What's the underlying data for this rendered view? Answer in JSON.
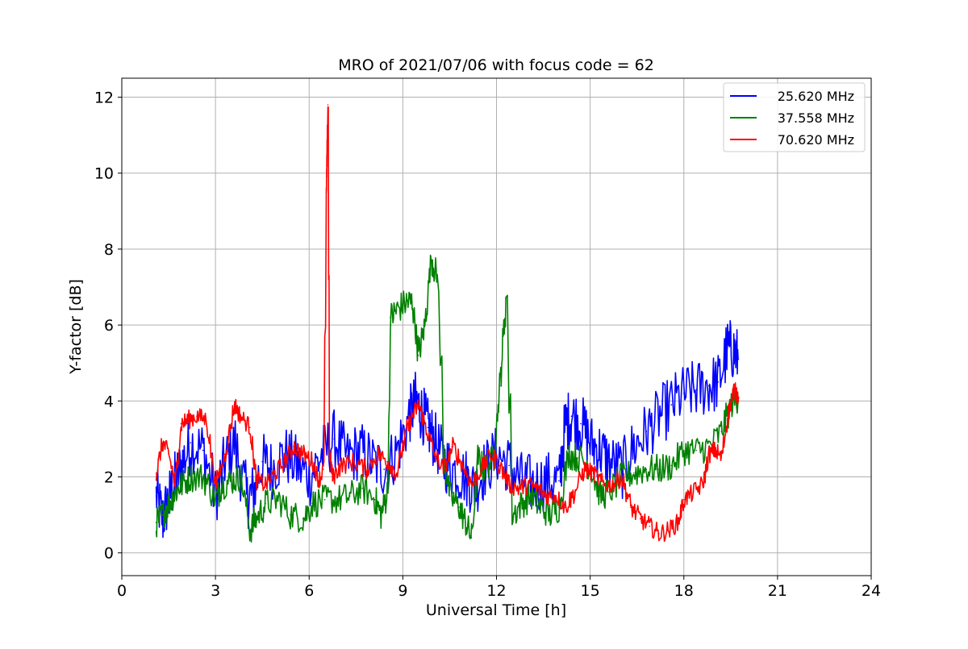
{
  "chart_data": {
    "type": "line",
    "title": "MRO of 2021/07/06 with focus code = 62",
    "xlabel": "Universal Time [h]",
    "ylabel": "Y-factor [dB]",
    "xlim": [
      0,
      24
    ],
    "ylim": [
      -0.6,
      12.5
    ],
    "xticks": [
      0,
      3,
      6,
      9,
      12,
      15,
      18,
      21,
      24
    ],
    "yticks": [
      0,
      2,
      4,
      6,
      8,
      10,
      12
    ],
    "grid": true,
    "legend_position": "top-right",
    "series": [
      {
        "name": "25.620 MHz",
        "color": "#0000ff",
        "noise": 0.8,
        "x": [
          1.1,
          1.3,
          1.5,
          1.7,
          1.9,
          2.2,
          2.6,
          3.0,
          3.3,
          3.6,
          4.0,
          4.2,
          4.5,
          4.8,
          5.2,
          5.6,
          6.0,
          6.4,
          6.8,
          7.2,
          7.6,
          8.0,
          8.4,
          8.8,
          9.2,
          9.4,
          9.6,
          9.8,
          10.0,
          10.3,
          10.6,
          11.0,
          11.3,
          11.6,
          12.0,
          12.4,
          12.8,
          13.2,
          13.6,
          14.0,
          14.2,
          14.4,
          14.7,
          15.0,
          15.3,
          15.6,
          16.0,
          16.4,
          16.8,
          17.2,
          17.6,
          18.0,
          18.4,
          18.8,
          19.1,
          19.4,
          19.6,
          19.75
        ],
        "y": [
          1.5,
          0.9,
          1.4,
          1.9,
          2.3,
          2.9,
          2.7,
          1.5,
          2.4,
          2.9,
          1.4,
          1.6,
          2.4,
          2.2,
          2.6,
          2.3,
          2.0,
          2.6,
          3.0,
          2.5,
          2.7,
          2.4,
          2.2,
          2.7,
          3.6,
          4.0,
          3.7,
          3.3,
          3.0,
          2.4,
          2.2,
          2.0,
          1.7,
          2.2,
          2.6,
          2.3,
          1.9,
          1.8,
          1.9,
          1.9,
          3.4,
          3.6,
          3.4,
          2.9,
          2.7,
          2.4,
          2.2,
          2.8,
          3.2,
          3.6,
          3.9,
          4.2,
          4.3,
          4.4,
          4.5,
          5.4,
          5.3,
          5.1
        ]
      },
      {
        "name": "37.558 MHz",
        "color": "#008000",
        "noise": 0.4,
        "x": [
          1.1,
          1.3,
          1.5,
          1.7,
          1.9,
          2.2,
          2.6,
          3.0,
          3.2,
          3.5,
          3.8,
          4.1,
          4.3,
          4.6,
          5.0,
          5.4,
          5.8,
          6.1,
          6.5,
          6.9,
          7.3,
          7.7,
          8.1,
          8.3,
          8.5,
          8.6,
          8.8,
          9.1,
          9.3,
          9.5,
          9.7,
          9.9,
          10.1,
          10.3,
          10.5,
          10.8,
          11.0,
          11.2,
          11.4,
          11.6,
          11.9,
          12.1,
          12.3,
          12.5,
          12.8,
          13.1,
          13.4,
          13.7,
          14.0,
          14.3,
          14.6,
          15.0,
          15.3,
          15.6,
          16.0,
          16.4,
          16.8,
          17.2,
          17.6,
          18.0,
          18.4,
          18.8,
          19.2,
          19.5,
          19.75
        ],
        "y": [
          0.8,
          1.0,
          1.3,
          1.6,
          1.8,
          2.0,
          2.0,
          1.4,
          1.8,
          1.9,
          2.0,
          0.6,
          0.9,
          1.3,
          1.4,
          1.0,
          0.9,
          1.3,
          1.4,
          1.4,
          1.5,
          1.7,
          1.4,
          1.0,
          1.6,
          6.2,
          6.4,
          6.6,
          6.6,
          5.2,
          6.0,
          7.8,
          7.2,
          2.6,
          1.5,
          1.2,
          0.8,
          0.4,
          2.5,
          2.2,
          2.5,
          4.4,
          6.7,
          1.0,
          1.3,
          1.5,
          1.2,
          1.0,
          1.2,
          2.6,
          2.5,
          2.3,
          1.5,
          1.6,
          2.0,
          2.1,
          2.2,
          2.2,
          2.3,
          2.7,
          2.7,
          2.8,
          3.2,
          3.9,
          4.1
        ]
      },
      {
        "name": "70.620 MHz",
        "color": "#ff0000",
        "noise": 0.25,
        "x": [
          1.1,
          1.3,
          1.5,
          1.7,
          1.9,
          2.1,
          2.4,
          2.7,
          3.0,
          3.3,
          3.6,
          3.8,
          4.1,
          4.3,
          4.6,
          4.9,
          5.2,
          5.5,
          5.8,
          6.1,
          6.3,
          6.45,
          6.55,
          6.6,
          6.65,
          6.75,
          7.0,
          7.4,
          7.8,
          8.2,
          8.5,
          8.8,
          9.1,
          9.3,
          9.5,
          9.7,
          10.0,
          10.3,
          10.6,
          10.9,
          11.2,
          11.5,
          11.8,
          12.1,
          12.4,
          12.7,
          13.0,
          13.3,
          13.6,
          13.9,
          14.2,
          14.5,
          14.8,
          15.1,
          15.4,
          15.7,
          16.0,
          16.3,
          16.6,
          16.9,
          17.2,
          17.5,
          17.8,
          18.0,
          18.3,
          18.6,
          18.8,
          19.0,
          19.2,
          19.4,
          19.6,
          19.75
        ],
        "y": [
          2.1,
          2.9,
          2.6,
          1.8,
          3.4,
          3.5,
          3.6,
          3.5,
          1.8,
          2.6,
          3.9,
          3.6,
          3.3,
          1.9,
          1.8,
          2.1,
          2.4,
          2.8,
          2.6,
          2.4,
          1.9,
          2.2,
          9.5,
          11.8,
          2.6,
          2.0,
          2.3,
          2.4,
          2.2,
          2.6,
          2.4,
          2.1,
          3.2,
          3.6,
          3.9,
          3.4,
          2.6,
          2.2,
          2.8,
          2.3,
          1.8,
          2.2,
          2.6,
          2.3,
          1.8,
          1.7,
          1.8,
          1.7,
          1.5,
          1.5,
          1.2,
          1.6,
          2.2,
          2.1,
          1.8,
          1.8,
          2.0,
          1.2,
          0.9,
          0.7,
          0.5,
          0.6,
          0.8,
          1.4,
          1.6,
          1.8,
          2.6,
          2.7,
          2.5,
          3.6,
          4.3,
          4.1
        ]
      }
    ]
  }
}
